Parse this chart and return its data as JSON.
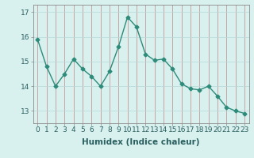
{
  "x": [
    0,
    1,
    2,
    3,
    4,
    5,
    6,
    7,
    8,
    9,
    10,
    11,
    12,
    13,
    14,
    15,
    16,
    17,
    18,
    19,
    20,
    21,
    22,
    23
  ],
  "y": [
    15.9,
    14.8,
    14.0,
    14.5,
    15.1,
    14.7,
    14.4,
    14.0,
    14.6,
    15.6,
    16.8,
    16.4,
    15.3,
    15.05,
    15.1,
    14.7,
    14.1,
    13.9,
    13.85,
    14.0,
    13.6,
    13.15,
    13.0,
    12.9
  ],
  "line_color": "#2e8b7a",
  "marker": "D",
  "marker_size": 2.5,
  "bg_color": "#d8f0ee",
  "grid_color_v": "#c08888",
  "grid_color_h": "#b8d8d8",
  "xlabel": "Humidex (Indice chaleur)",
  "ylim": [
    12.5,
    17.3
  ],
  "yticks": [
    13,
    14,
    15,
    16,
    17
  ],
  "xticks": [
    0,
    1,
    2,
    3,
    4,
    5,
    6,
    7,
    8,
    9,
    10,
    11,
    12,
    13,
    14,
    15,
    16,
    17,
    18,
    19,
    20,
    21,
    22,
    23
  ],
  "xlabel_fontsize": 7.5,
  "tick_fontsize": 6.5,
  "line_width": 1.0,
  "fig_width": 3.2,
  "fig_height": 2.0,
  "dpi": 100
}
